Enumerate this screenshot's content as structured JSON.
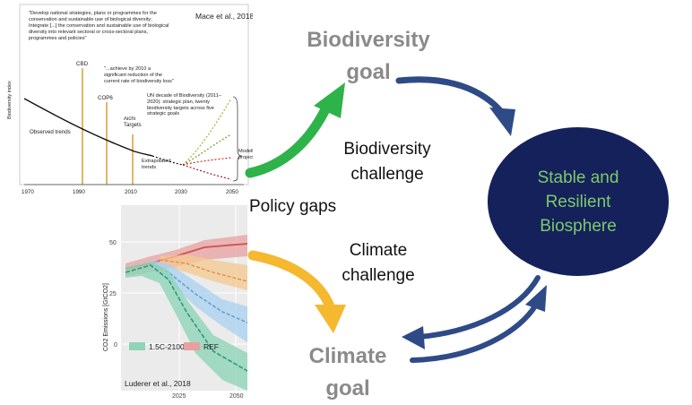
{
  "biodiv_panel": {
    "citation": "Mace et al., 2018",
    "quote": "\"Develop national strategies, plans or programmes for the conservation and sustainable use of biological diversity; Integrate [...] the conservation and sustainable use of biological diversity into relevant sectoral or cross-sectoral plans, programmes and policies\"",
    "ylabel": "Biodiversity index",
    "events": [
      "CBD",
      "COP6",
      "Aichi Targets"
    ],
    "quote2": "\"...achieve by 2010 a significant reduction of the current rate of biodiversity loss\"",
    "un_decade": "UN decade of Biodiversity (2011–2020): strategic plan, twenty biodiversity targets across five strategic goals",
    "observed": "Observed trends",
    "extrapolated": "Extrapolated trends",
    "modelled": "Modelled projections",
    "x_ticks": [
      "1970",
      "1990",
      "2010",
      "2030",
      "2050"
    ]
  },
  "climate_panel": {
    "citation": "Luderer et al., 2018",
    "ylabel": "CO2 Emissions [GtCO2]",
    "y_ticks": [
      "50",
      "25",
      "0"
    ],
    "x_ticks": [
      "2025",
      "2050"
    ],
    "legend": [
      "1.5C-2100",
      "REF"
    ],
    "colors": {
      "low": "#5fbfa0",
      "ref": "#e07070",
      "mid_blue": "#7ab8e0",
      "mid_orange": "#f0b070"
    }
  },
  "labels": {
    "biodiversity_goal": "Biodiversity goal",
    "biodiversity_challenge": "Biodiversity challenge",
    "policy_gaps": "Policy gaps",
    "climate_challenge": "Climate challenge",
    "climate_goal": "Climate goal",
    "center": "Stable and Resilient Biosphere"
  },
  "colors": {
    "green_arrow": "#2db34a",
    "yellow_arrow": "#f5b82e",
    "blue_arrow": "#2e4a87",
    "circle": "#14215b",
    "circle_text": "#7dc96a"
  }
}
